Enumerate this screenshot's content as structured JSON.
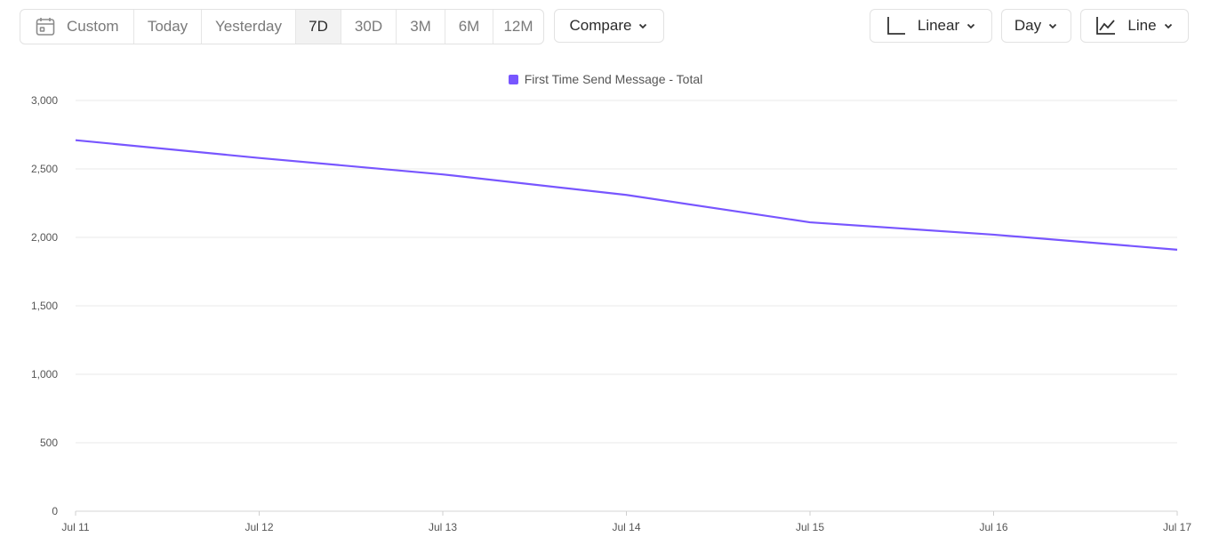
{
  "toolbar": {
    "ranges": [
      "Custom",
      "Today",
      "Yesterday",
      "7D",
      "30D",
      "3M",
      "6M",
      "12M"
    ],
    "active_range": "7D",
    "compare_label": "Compare",
    "scale_label": "Linear",
    "interval_label": "Day",
    "chart_type_label": "Line"
  },
  "icons": {
    "calendar": "calendar-icon",
    "scale": "linear-axis-icon",
    "chart_type": "line-chart-icon",
    "dropdown": "chevron-down-icon"
  },
  "colors": {
    "series": "#7856ff",
    "active_bg": "#f2f2f2"
  },
  "chart_data": {
    "type": "line",
    "x": [
      "Jul 11",
      "Jul 12",
      "Jul 13",
      "Jul 14",
      "Jul 15",
      "Jul 16",
      "Jul 17"
    ],
    "series": [
      {
        "name": "First Time Send Message - Total",
        "values": [
          2710,
          2580,
          2460,
          2310,
          2110,
          2020,
          1910
        ]
      }
    ],
    "yticks": [
      "0",
      "500",
      "1,000",
      "1,500",
      "2,000",
      "2,500",
      "3,000"
    ],
    "ylim": [
      0,
      3000
    ],
    "grid": true,
    "legend": "top-center"
  }
}
